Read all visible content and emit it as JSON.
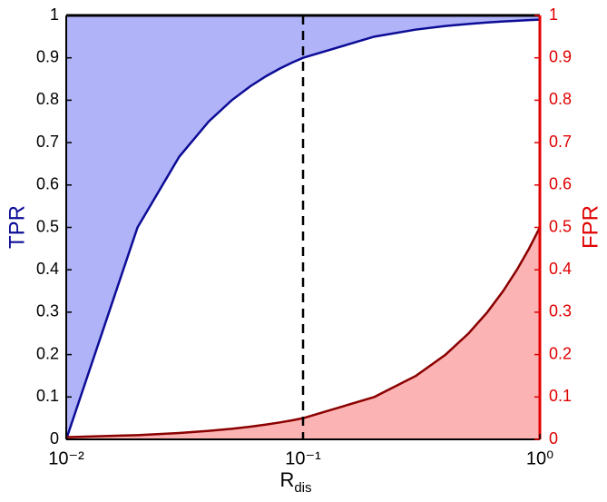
{
  "chart_data": {
    "type": "line",
    "x": [
      0.01,
      0.02,
      0.03,
      0.04,
      0.05,
      0.06,
      0.07,
      0.08,
      0.09,
      0.1,
      0.2,
      0.3,
      0.4,
      0.5,
      0.6,
      0.7,
      0.8,
      0.9,
      1.0
    ],
    "series": [
      {
        "name": "TPR",
        "color": "#0c0c96",
        "fill": "#b0b3f7",
        "fill_side": "above",
        "values": [
          0,
          0.5,
          0.6667,
          0.75,
          0.8,
          0.8333,
          0.8571,
          0.875,
          0.8889,
          0.9,
          0.95,
          0.9667,
          0.975,
          0.98,
          0.9833,
          0.9857,
          0.9875,
          0.9889,
          0.99
        ]
      },
      {
        "name": "FPR",
        "color": "#8b0000",
        "fill": "#fbb3b3",
        "fill_side": "below",
        "axis": "y2",
        "values": [
          0.005,
          0.01,
          0.015,
          0.02,
          0.025,
          0.03,
          0.035,
          0.04,
          0.045,
          0.05,
          0.1,
          0.15,
          0.2,
          0.25,
          0.3,
          0.35,
          0.4,
          0.45,
          0.5
        ]
      }
    ],
    "xlabel": "R",
    "xlabel_subscript": "dis",
    "xscale": "log",
    "xlim": [
      0.01,
      1
    ],
    "xticks": [
      {
        "value": 0.01,
        "label": "10⁻²"
      },
      {
        "value": 0.1,
        "label": "10⁻¹"
      },
      {
        "value": 1,
        "label": "10⁰"
      }
    ],
    "ylim": [
      0,
      1
    ],
    "yticks": [
      0,
      0.1,
      0.2,
      0.3,
      0.4,
      0.5,
      0.6,
      0.7,
      0.8,
      0.9,
      1
    ],
    "y2lim": [
      0,
      1
    ],
    "y2ticks": [
      0,
      0.1,
      0.2,
      0.3,
      0.4,
      0.5,
      0.6,
      0.7,
      0.8,
      0.9,
      1
    ],
    "y2color": "#e00000",
    "vline": 0.1
  }
}
